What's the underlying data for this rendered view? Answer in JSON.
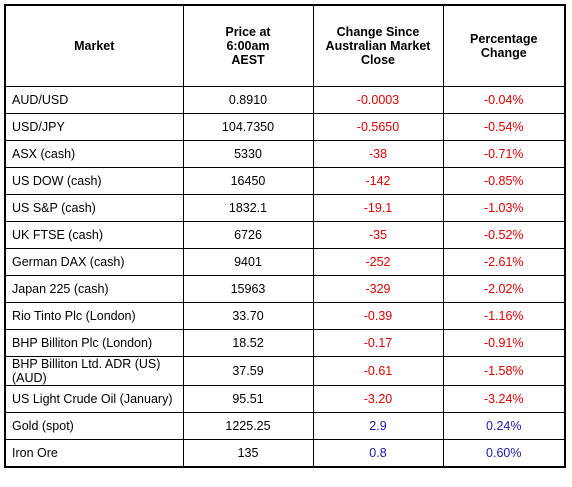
{
  "table": {
    "header": [
      "Market",
      "Price at\n6:00am\nAEST",
      "Change Since\nAustralian Market\nClose",
      "Percentage\nChange"
    ],
    "rows": [
      [
        "AUD/USD",
        "0.8910",
        "-0.0003",
        "-0.04%"
      ],
      [
        "USD/JPY",
        "104.7350",
        "-0.5650",
        "-0.54%"
      ],
      [
        "ASX (cash)",
        "5330",
        "-38",
        "-0.71%"
      ],
      [
        "US DOW (cash)",
        "16450",
        "-142",
        "-0.85%"
      ],
      [
        "US S&P (cash)",
        "1832.1",
        "-19.1",
        "-1.03%"
      ],
      [
        "UK FTSE (cash)",
        "6726",
        "-35",
        "-0.52%"
      ],
      [
        "German DAX (cash)",
        "9401",
        "-252",
        "-2.61%"
      ],
      [
        "Japan 225 (cash)",
        "15963",
        "-329",
        "-2.02%"
      ],
      [
        "Rio Tinto Plc (London)",
        "33.70",
        "-0.39",
        "-1.16%"
      ],
      [
        "BHP Billiton Plc (London)",
        "18.52",
        "-0.17",
        "-0.91%"
      ],
      [
        "BHP Billiton Ltd. ADR (US) (AUD)",
        "37.59",
        "-0.61",
        "-1.58%"
      ],
      [
        "US Light Crude Oil (January)",
        "95.51",
        "-3.20",
        "-3.24%"
      ],
      [
        "Gold (spot)",
        "1225.25",
        "2.9",
        "0.24%"
      ],
      [
        "Iron Ore",
        "135",
        "0.8",
        "0.60%"
      ]
    ]
  }
}
